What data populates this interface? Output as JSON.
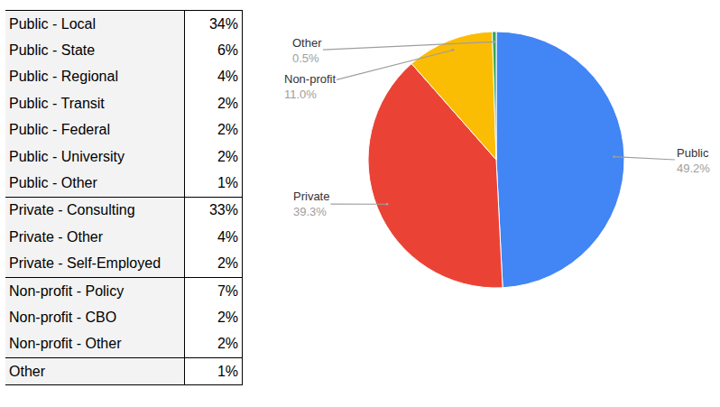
{
  "table": {
    "groups": [
      [
        [
          "Public - Local",
          "34%"
        ],
        [
          "Public - State",
          "6%"
        ],
        [
          "Public - Regional",
          "4%"
        ],
        [
          "Public - Transit",
          "2%"
        ],
        [
          "Public - Federal",
          "2%"
        ],
        [
          "Public - University",
          "2%"
        ],
        [
          "Public - Other",
          "1%"
        ]
      ],
      [
        [
          "Private - Consulting",
          "33%"
        ],
        [
          "Private - Other",
          "4%"
        ],
        [
          "Private - Self-Employed",
          "2%"
        ]
      ],
      [
        [
          "Non-profit - Policy",
          "7%"
        ],
        [
          "Non-profit - CBO",
          "2%"
        ],
        [
          "Non-profit - Other",
          "2%"
        ]
      ],
      [
        [
          "Other",
          "1%"
        ]
      ]
    ]
  },
  "chart_data": {
    "type": "pie",
    "categories": [
      "Public",
      "Private",
      "Non-profit",
      "Other"
    ],
    "values": [
      49.2,
      39.3,
      11.0,
      0.5
    ],
    "value_labels": [
      "49.2%",
      "39.3%",
      "11.0%",
      "0.5%"
    ],
    "colors": [
      "#4285f4",
      "#ea4335",
      "#fbbc04",
      "#34a853"
    ],
    "data_labels": true
  }
}
